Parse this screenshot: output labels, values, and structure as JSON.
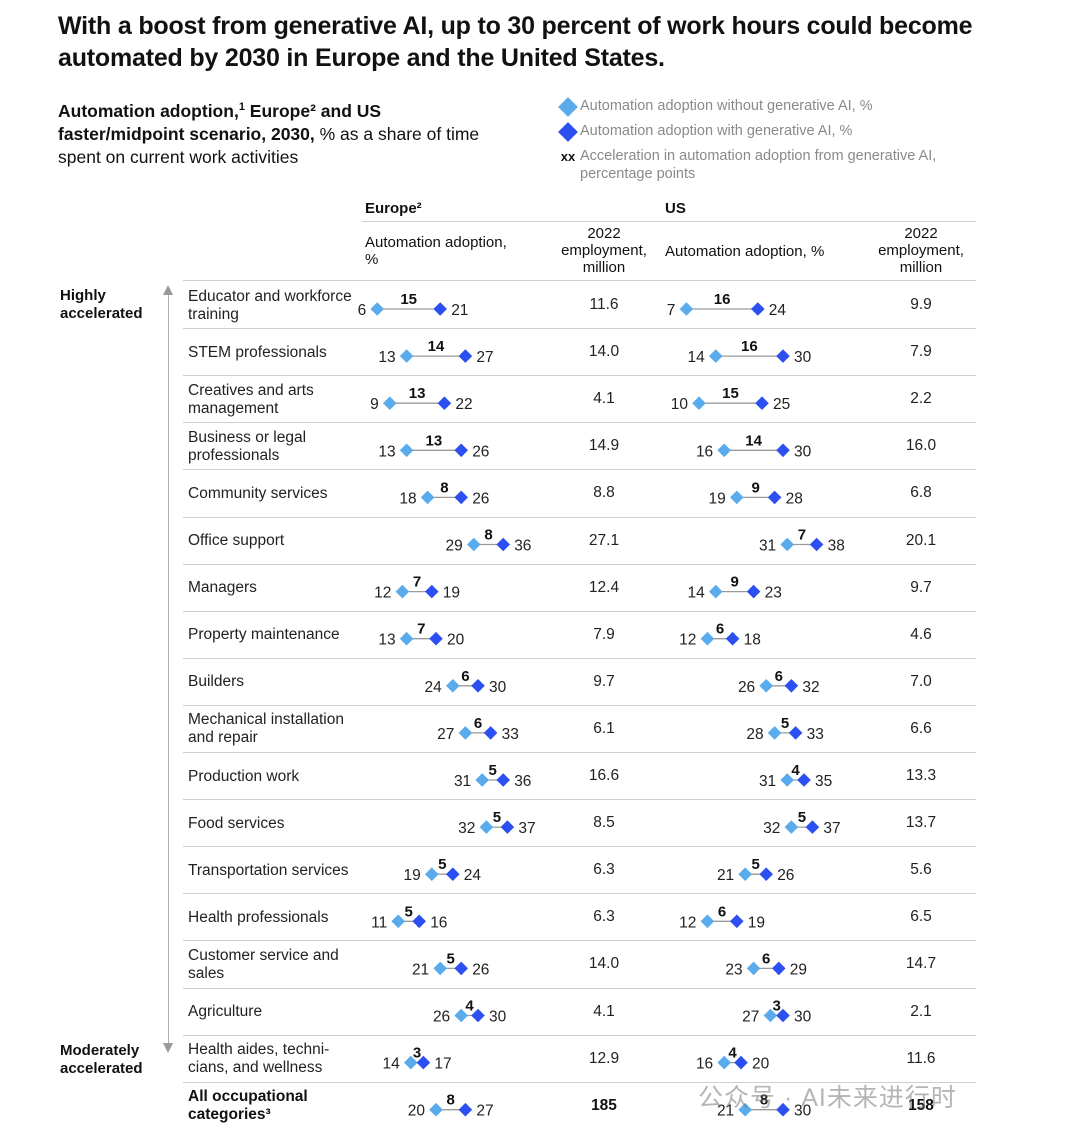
{
  "title": "With a boost from generative AI, up to 30 percent of work hours could become automated by 2030 in Europe and the United States.",
  "subtitle": {
    "bold_1": "Automation adoption,",
    "sup_1": "1",
    "bold_2": " Europe² and US faster/midpoint scenario, 2030,",
    "normal": " % as a share of time spent on current work activities"
  },
  "legend": {
    "without": "Automation adoption without generative AI, %",
    "with": "Automation adoption with generative AI, %",
    "xx_symbol": "xx",
    "accel": "Acceleration in automation adoption from generative AI, percentage points"
  },
  "colors": {
    "without": "#5aabec",
    "with": "#2b4ff0",
    "connector": "#9a9a9a"
  },
  "headers": {
    "europe": "Europe²",
    "us": "US",
    "adoption_eu": "Automation adoption,",
    "adoption_eu_unit": "%",
    "adoption_us": "Automation adoption,",
    "adoption_us_unit": " %",
    "emp_line1": "2022",
    "emp_line2": "employment,",
    "emp_line3": "million"
  },
  "axis": {
    "top": "Highly accelerated",
    "bottom": "Moderately accelerated"
  },
  "chart_data": {
    "type": "dumbbell",
    "title": "With a boost from generative AI, up to 30 percent of work hours could become automated by 2030 in Europe and the United States.",
    "series_names": [
      "Automation adoption without generative AI, %",
      "Automation adoption with generative AI, %"
    ],
    "rows": [
      {
        "label": "Educator and workforce training",
        "eu": {
          "without": 6,
          "with": 21,
          "accel": 15,
          "employment": "11.6"
        },
        "us": {
          "without": 7,
          "with": 24,
          "accel": 16,
          "employment": "9.9"
        }
      },
      {
        "label": "STEM professionals",
        "eu": {
          "without": 13,
          "with": 27,
          "accel": 14,
          "employment": "14.0"
        },
        "us": {
          "without": 14,
          "with": 30,
          "accel": 16,
          "employment": "7.9"
        }
      },
      {
        "label": "Creatives and arts management",
        "eu": {
          "without": 9,
          "with": 22,
          "accel": 13,
          "employment": "4.1"
        },
        "us": {
          "without": 10,
          "with": 25,
          "accel": 15,
          "employment": "2.2"
        }
      },
      {
        "label": "Business or legal professionals",
        "eu": {
          "without": 13,
          "with": 26,
          "accel": 13,
          "employment": "14.9"
        },
        "us": {
          "without": 16,
          "with": 30,
          "accel": 14,
          "employment": "16.0"
        }
      },
      {
        "label": "Community services",
        "eu": {
          "without": 18,
          "with": 26,
          "accel": 8,
          "employment": "8.8"
        },
        "us": {
          "without": 19,
          "with": 28,
          "accel": 9,
          "employment": "6.8"
        }
      },
      {
        "label": "Office support",
        "eu": {
          "without": 29,
          "with": 36,
          "accel": 8,
          "employment": "27.1"
        },
        "us": {
          "without": 31,
          "with": 38,
          "accel": 7,
          "employment": "20.1"
        }
      },
      {
        "label": "Managers",
        "eu": {
          "without": 12,
          "with": 19,
          "accel": 7,
          "employment": "12.4"
        },
        "us": {
          "without": 14,
          "with": 23,
          "accel": 9,
          "employment": "9.7"
        }
      },
      {
        "label": "Property maintenance",
        "eu": {
          "without": 13,
          "with": 20,
          "accel": 7,
          "employment": "7.9"
        },
        "us": {
          "without": 12,
          "with": 18,
          "accel": 6,
          "employment": "4.6"
        }
      },
      {
        "label": "Builders",
        "eu": {
          "without": 24,
          "with": 30,
          "accel": 6,
          "employment": "9.7"
        },
        "us": {
          "without": 26,
          "with": 32,
          "accel": 6,
          "employment": "7.0"
        }
      },
      {
        "label": "Mechanical installation and repair",
        "eu": {
          "without": 27,
          "with": 33,
          "accel": 6,
          "employment": "6.1"
        },
        "us": {
          "without": 28,
          "with": 33,
          "accel": 5,
          "employment": "6.6"
        }
      },
      {
        "label": "Production work",
        "eu": {
          "without": 31,
          "with": 36,
          "accel": 5,
          "employment": "16.6"
        },
        "us": {
          "without": 31,
          "with": 35,
          "accel": 4,
          "employment": "13.3"
        }
      },
      {
        "label": "Food services",
        "eu": {
          "without": 32,
          "with": 37,
          "accel": 5,
          "employment": "8.5"
        },
        "us": {
          "without": 32,
          "with": 37,
          "accel": 5,
          "employment": "13.7"
        }
      },
      {
        "label": "Transportation services",
        "eu": {
          "without": 19,
          "with": 24,
          "accel": 5,
          "employment": "6.3"
        },
        "us": {
          "without": 21,
          "with": 26,
          "accel": 5,
          "employment": "5.6"
        }
      },
      {
        "label": "Health professionals",
        "eu": {
          "without": 11,
          "with": 16,
          "accel": 5,
          "employment": "6.3"
        },
        "us": {
          "without": 12,
          "with": 19,
          "accel": 6,
          "employment": "6.5"
        }
      },
      {
        "label": "Customer service and sales",
        "eu": {
          "without": 21,
          "with": 26,
          "accel": 5,
          "employment": "14.0"
        },
        "us": {
          "without": 23,
          "with": 29,
          "accel": 6,
          "employment": "14.7"
        }
      },
      {
        "label": "Agriculture",
        "eu": {
          "without": 26,
          "with": 30,
          "accel": 4,
          "employment": "4.1"
        },
        "us": {
          "without": 27,
          "with": 30,
          "accel": 3,
          "employment": "2.1"
        }
      },
      {
        "label": "Health aides, techni-cians, and wellness",
        "eu": {
          "without": 14,
          "with": 17,
          "accel": 3,
          "employment": "12.9"
        },
        "us": {
          "without": 16,
          "with": 20,
          "accel": 4,
          "employment": "11.6"
        }
      },
      {
        "label": "All occupational categories³",
        "total": true,
        "eu": {
          "without": 20,
          "with": 27,
          "accel": 8,
          "employment": "185"
        },
        "us": {
          "without": 21,
          "with": 30,
          "accel": 8,
          "employment": "158"
        }
      }
    ]
  },
  "watermark": "公众号 · AI未来进行时"
}
